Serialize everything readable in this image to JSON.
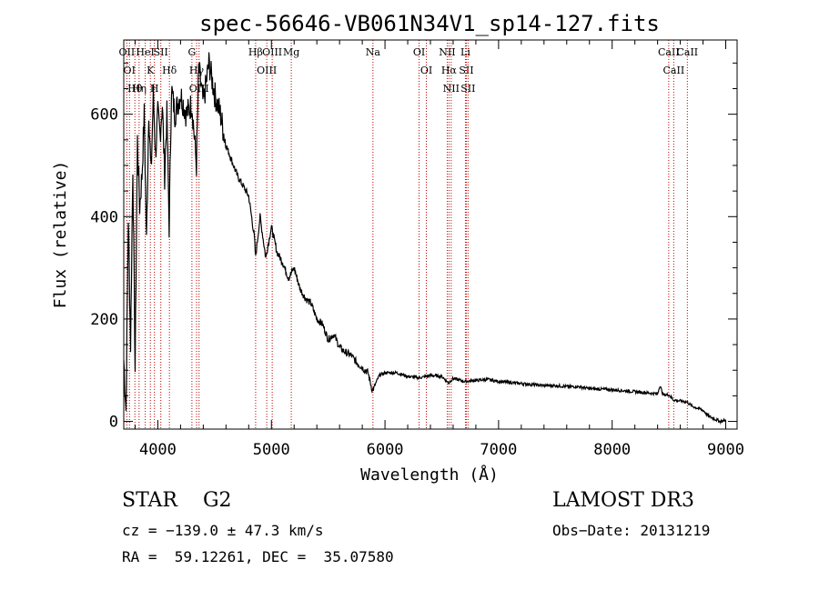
{
  "chart_data": {
    "type": "line",
    "title": "spec-56646-VB061N34V1_sp14-127.fits",
    "xlabel": "Wavelength (Å)",
    "ylabel": "Flux (relative)",
    "xlim": [
      3700,
      9100
    ],
    "ylim": [
      -15,
      745
    ],
    "x_ticks": [
      4000,
      5000,
      6000,
      7000,
      8000,
      9000
    ],
    "y_ticks": [
      0,
      200,
      400,
      600
    ],
    "x_tick_labels": [
      "4000",
      "5000",
      "6000",
      "7000",
      "8000",
      "9000"
    ],
    "y_tick_labels": [
      "0",
      "200",
      "400",
      "600"
    ],
    "series": [
      {
        "name": "spectrum",
        "x": [
          3700,
          3720,
          3740,
          3760,
          3780,
          3800,
          3820,
          3840,
          3860,
          3880,
          3900,
          3920,
          3940,
          3960,
          3980,
          4000,
          4020,
          4040,
          4060,
          4080,
          4100,
          4120,
          4150,
          4200,
          4250,
          4300,
          4340,
          4360,
          4400,
          4450,
          4500,
          4550,
          4600,
          4650,
          4700,
          4750,
          4800,
          4850,
          4860,
          4900,
          4950,
          5000,
          5050,
          5100,
          5150,
          5200,
          5250,
          5300,
          5350,
          5400,
          5450,
          5500,
          5550,
          5600,
          5650,
          5700,
          5750,
          5800,
          5850,
          5890,
          5950,
          6000,
          6100,
          6200,
          6300,
          6400,
          6500,
          6560,
          6600,
          6700,
          6800,
          6900,
          7000,
          7100,
          7200,
          7300,
          7400,
          7500,
          7600,
          7700,
          7800,
          7900,
          8000,
          8100,
          8200,
          8300,
          8400,
          8420,
          8450,
          8500,
          8540,
          8600,
          8660,
          8700,
          8800,
          8850,
          8900,
          8950,
          9000
        ],
        "y": [
          120,
          20,
          400,
          150,
          500,
          100,
          550,
          420,
          480,
          600,
          350,
          610,
          480,
          640,
          520,
          600,
          560,
          620,
          480,
          600,
          380,
          650,
          600,
          640,
          600,
          620,
          500,
          690,
          620,
          700,
          640,
          600,
          540,
          510,
          480,
          460,
          440,
          360,
          320,
          400,
          320,
          380,
          330,
          310,
          280,
          300,
          260,
          240,
          230,
          200,
          190,
          160,
          170,
          145,
          135,
          130,
          115,
          105,
          95,
          60,
          90,
          95,
          95,
          88,
          85,
          90,
          88,
          75,
          84,
          78,
          80,
          82,
          78,
          76,
          74,
          72,
          70,
          70,
          68,
          68,
          64,
          63,
          62,
          60,
          58,
          56,
          54,
          70,
          52,
          52,
          42,
          40,
          38,
          30,
          22,
          10,
          5,
          0,
          2
        ]
      }
    ],
    "line_markers": [
      {
        "wave": 3727,
        "label": "OII"
      },
      {
        "wave": 3750,
        "label": "OI"
      },
      {
        "wave": 3798,
        "label": "Hθ"
      },
      {
        "wave": 3835,
        "label": "Hη"
      },
      {
        "wave": 3889,
        "label": "HeI"
      },
      {
        "wave": 3934,
        "label": "K"
      },
      {
        "wave": 3970,
        "label": "H"
      },
      {
        "wave": 4026,
        "label": "SII"
      },
      {
        "wave": 4102,
        "label": "Hδ"
      },
      {
        "wave": 4300,
        "label": "G"
      },
      {
        "wave": 4341,
        "label": "Hγ"
      },
      {
        "wave": 4363,
        "label": "OIII"
      },
      {
        "wave": 4861,
        "label": "Hβ"
      },
      {
        "wave": 4959,
        "label": "OIII"
      },
      {
        "wave": 5007,
        "label": "OIII"
      },
      {
        "wave": 5175,
        "label": "Mg"
      },
      {
        "wave": 5894,
        "label": "Na"
      },
      {
        "wave": 6300,
        "label": "OI"
      },
      {
        "wave": 6364,
        "label": "OI"
      },
      {
        "wave": 6548,
        "label": "NII"
      },
      {
        "wave": 6563,
        "label": "Hα"
      },
      {
        "wave": 6583,
        "label": "NII"
      },
      {
        "wave": 6708,
        "label": "Li"
      },
      {
        "wave": 6716,
        "label": "SII"
      },
      {
        "wave": 6731,
        "label": "SII"
      },
      {
        "wave": 8498,
        "label": "CaII"
      },
      {
        "wave": 8542,
        "label": "CaII"
      },
      {
        "wave": 8662,
        "label": "CaII"
      }
    ]
  },
  "info": {
    "class_text": "STAR    G2",
    "survey": "LAMOST DR3",
    "cz": "cz = −139.0 ± 47.3 km/s",
    "obs_date": "Obs−Date: 20131219",
    "coords": "RA =  59.12261, DEC =  35.07580"
  },
  "colors": {
    "marker": "#c00000",
    "axis": "#000000"
  }
}
